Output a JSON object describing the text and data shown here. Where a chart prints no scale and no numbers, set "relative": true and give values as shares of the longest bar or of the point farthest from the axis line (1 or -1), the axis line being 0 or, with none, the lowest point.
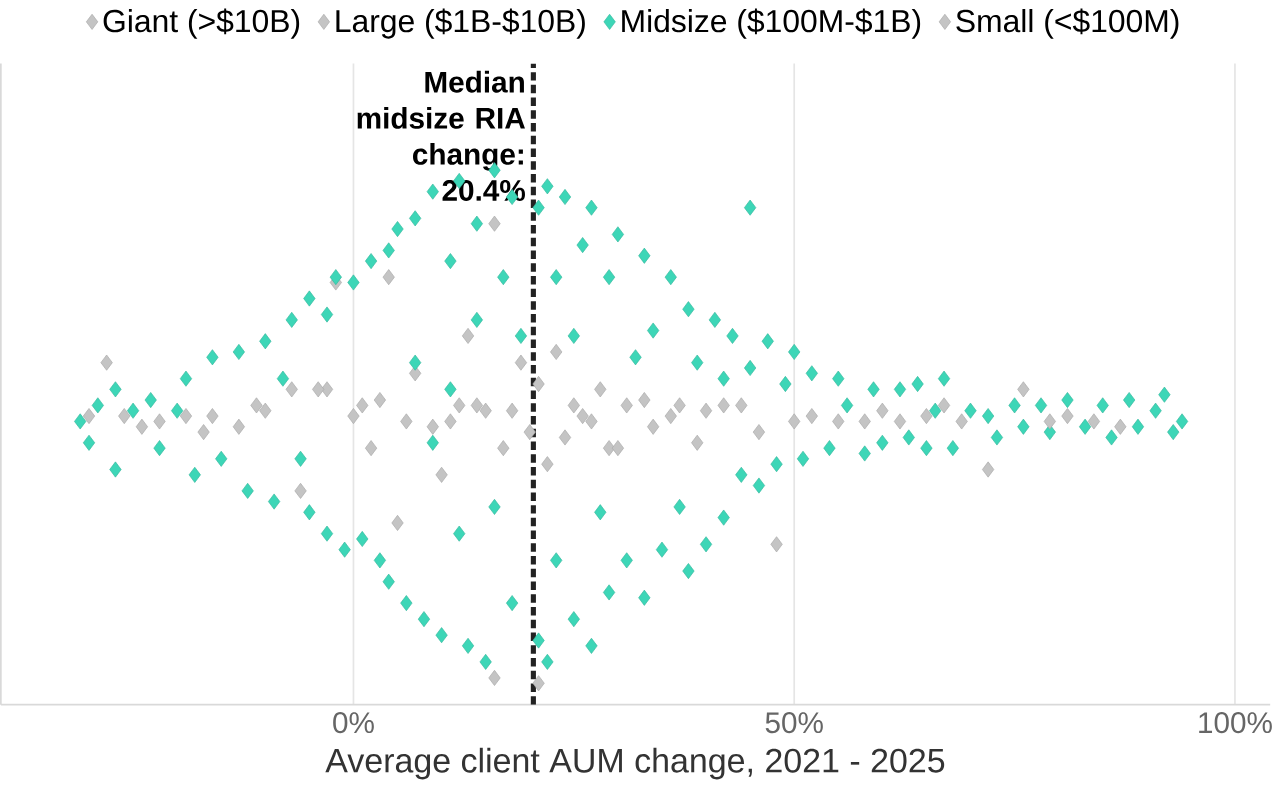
{
  "chart_data": {
    "type": "scatter",
    "xlabel": "Average client AUM change, 2021 - 2025",
    "xlim": [
      -40,
      104
    ],
    "relative": true,
    "xticks": [
      {
        "value": 0,
        "label": "0%"
      },
      {
        "value": 50,
        "label": "50%"
      },
      {
        "value": 100,
        "label": "100%"
      }
    ],
    "tick_labels": "x",
    "grid": "x",
    "legend": "top",
    "marker": "diamond",
    "ref_lines": [
      {
        "axis": "x",
        "value": 20.4,
        "label": "Median midsize RIA change: 20.4%",
        "color": "#222222",
        "line_style": "dashed"
      }
    ],
    "series": [
      {
        "name": "Giant (>$10B)",
        "color": "#c4c4c4",
        "x": [
          -30,
          -28,
          -22,
          -16,
          -10,
          -6,
          -2,
          1,
          4,
          7,
          11,
          16,
          16,
          21,
          23,
          27,
          31,
          36,
          42,
          48,
          55,
          62,
          72,
          84,
          87
        ],
        "values": [
          0.54,
          0.64,
          0.53,
          0.54,
          0.55,
          0.4,
          0.79,
          0.56,
          0.8,
          0.62,
          0.53,
          0.9,
          0.05,
          0.04,
          0.66,
          0.53,
          0.56,
          0.54,
          0.56,
          0.3,
          0.53,
          0.53,
          0.44,
          0.53,
          0.52
        ]
      },
      {
        "name": "Large ($1B-$10B)",
        "color": "#c4c4c4",
        "x": [
          -26,
          -19,
          -13,
          -7,
          -3,
          3,
          5,
          9,
          13,
          15,
          17,
          19,
          22,
          25,
          29,
          33,
          39,
          44,
          52,
          58,
          69,
          76,
          81
        ],
        "values": [
          0.54,
          0.54,
          0.52,
          0.59,
          0.59,
          0.57,
          0.34,
          0.52,
          0.69,
          0.55,
          0.48,
          0.64,
          0.45,
          0.56,
          0.48,
          0.57,
          0.49,
          0.56,
          0.54,
          0.53,
          0.53,
          0.59,
          0.54
        ]
      },
      {
        "name": "Midsize ($100M-$1B)",
        "color": "#3dd6b7",
        "x": [
          -31,
          -30,
          -29,
          -27,
          -27,
          -25,
          -23,
          -22,
          -20,
          -19,
          -18,
          -16,
          -15,
          -13,
          -12,
          -10,
          -9,
          -8,
          -7,
          -6,
          -5,
          -5,
          -3,
          -3,
          -2,
          -1,
          0,
          1,
          2,
          3,
          4,
          4,
          5,
          6,
          7,
          7,
          8,
          9,
          9,
          10,
          11,
          11,
          12,
          12,
          13,
          14,
          14,
          15,
          16,
          16,
          17,
          18,
          18,
          19,
          21,
          21,
          22,
          22,
          23,
          23,
          24,
          25,
          25,
          26,
          27,
          27,
          28,
          29,
          29,
          30,
          31,
          32,
          33,
          33,
          34,
          35,
          36,
          37,
          38,
          38,
          39,
          40,
          41,
          42,
          42,
          43,
          44,
          45,
          45,
          46,
          47,
          48,
          49,
          50,
          51,
          52,
          54,
          55,
          56,
          58,
          59,
          60,
          62,
          63,
          64,
          65,
          66,
          67,
          68,
          70,
          72,
          73,
          75,
          76,
          78,
          79,
          81,
          83,
          85,
          86,
          88,
          89,
          91,
          92,
          93,
          94
        ],
        "values": [
          0.53,
          0.49,
          0.56,
          0.44,
          0.59,
          0.55,
          0.57,
          0.48,
          0.55,
          0.61,
          0.43,
          0.65,
          0.46,
          0.66,
          0.4,
          0.68,
          0.38,
          0.61,
          0.72,
          0.46,
          0.36,
          0.76,
          0.73,
          0.32,
          0.8,
          0.29,
          0.79,
          0.31,
          0.83,
          0.27,
          0.85,
          0.23,
          0.89,
          0.19,
          0.91,
          0.64,
          0.16,
          0.96,
          0.49,
          0.13,
          0.83,
          0.59,
          0.98,
          0.32,
          0.11,
          0.9,
          0.72,
          0.08,
          1,
          0.37,
          0.8,
          0.19,
          0.95,
          0.69,
          0.93,
          0.12,
          0.97,
          0.08,
          0.8,
          0.27,
          0.95,
          0.16,
          0.69,
          0.86,
          0.11,
          0.93,
          0.36,
          0.8,
          0.21,
          0.88,
          0.27,
          0.65,
          0.84,
          0.2,
          0.7,
          0.29,
          0.8,
          0.37,
          0.74,
          0.25,
          0.64,
          0.3,
          0.72,
          0.61,
          0.35,
          0.69,
          0.43,
          0.93,
          0.63,
          0.41,
          0.68,
          0.45,
          0.6,
          0.66,
          0.46,
          0.62,
          0.48,
          0.61,
          0.56,
          0.47,
          0.59,
          0.49,
          0.59,
          0.5,
          0.6,
          0.48,
          0.55,
          0.61,
          0.48,
          0.55,
          0.54,
          0.5,
          0.56,
          0.52,
          0.56,
          0.51,
          0.57,
          0.52,
          0.56,
          0.5,
          0.57,
          0.52,
          0.55,
          0.58,
          0.51,
          0.53
        ]
      },
      {
        "name": "Small (<$100M)",
        "color": "#c4c4c4",
        "x": [
          -24,
          -17,
          -11,
          -4,
          0,
          2,
          6,
          10,
          12,
          14,
          18,
          20,
          21,
          24,
          26,
          28,
          30,
          34,
          37,
          40,
          46,
          50,
          60,
          65,
          67,
          79
        ],
        "values": [
          0.52,
          0.51,
          0.56,
          0.59,
          0.54,
          0.48,
          0.53,
          0.43,
          0.56,
          0.56,
          0.55,
          0.51,
          0.6,
          0.5,
          0.54,
          0.59,
          0.48,
          0.52,
          0.56,
          0.55,
          0.51,
          0.53,
          0.55,
          0.54,
          0.56,
          0.53
        ]
      }
    ]
  }
}
